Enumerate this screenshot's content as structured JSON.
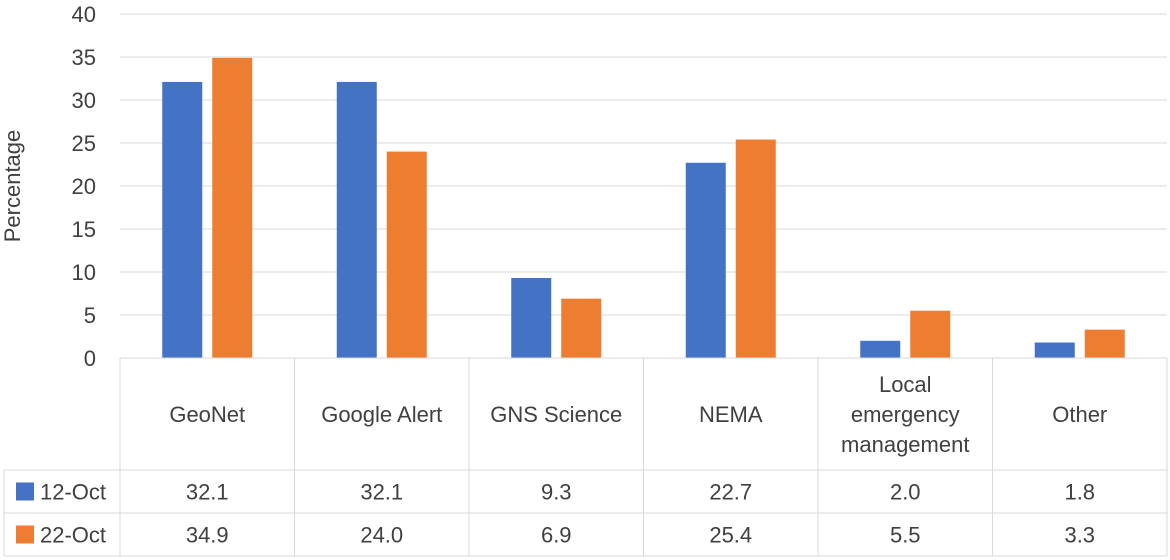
{
  "chart_data": {
    "type": "bar",
    "ylabel": "Percentage",
    "ylim": [
      0,
      40
    ],
    "yticks": [
      0,
      5,
      10,
      15,
      20,
      25,
      30,
      35,
      40
    ],
    "grid": true,
    "legend": "data-table",
    "categories": [
      [
        "GeoNet"
      ],
      [
        "Google Alert"
      ],
      [
        "GNS Science"
      ],
      [
        "NEMA"
      ],
      [
        "Local",
        "emergency",
        "management"
      ],
      [
        "Other"
      ]
    ],
    "series": [
      {
        "name": "12-Oct",
        "color": "#4472C4",
        "values": [
          32.1,
          32.1,
          9.3,
          22.7,
          2.0,
          1.8
        ],
        "labels": [
          "32.1",
          "32.1",
          "9.3",
          "22.7",
          "2.0",
          "1.8"
        ]
      },
      {
        "name": "22-Oct",
        "color": "#ED7D31",
        "values": [
          34.9,
          24.0,
          6.9,
          25.4,
          5.5,
          3.3
        ],
        "labels": [
          "34.9",
          "24.0",
          "6.9",
          "25.4",
          "5.5",
          "3.3"
        ]
      }
    ]
  }
}
